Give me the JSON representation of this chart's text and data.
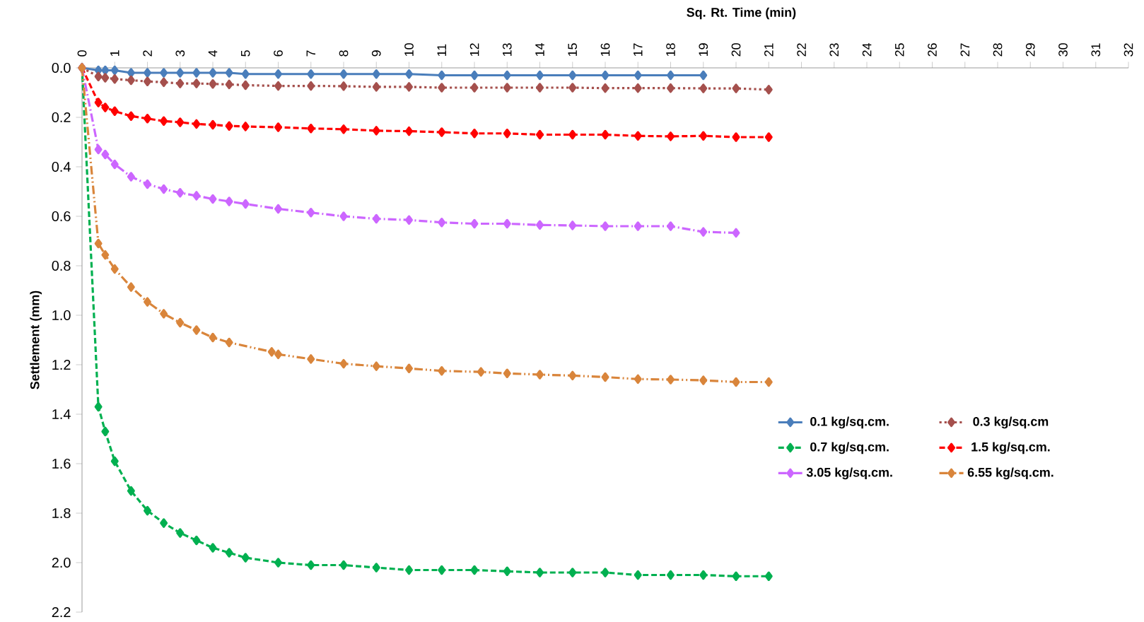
{
  "chart_data": {
    "type": "line",
    "xlabel": "Sq. Rt. Time (min)",
    "ylabel": "Settlement (mm)",
    "xlim": [
      0,
      32
    ],
    "xticks": [
      0,
      1,
      2,
      3,
      4,
      5,
      6,
      7,
      8,
      9,
      10,
      11,
      12,
      13,
      14,
      15,
      16,
      17,
      18,
      19,
      20,
      21,
      22,
      23,
      24,
      25,
      26,
      27,
      28,
      29,
      30,
      31,
      32
    ],
    "ylim": [
      2.2,
      0
    ],
    "yticks": [
      {
        "value": 0,
        "label": "0.0"
      },
      {
        "value": 0.2,
        "label": "0.2"
      },
      {
        "value": 0.4,
        "label": "0.4"
      },
      {
        "value": 0.6,
        "label": "0.6"
      },
      {
        "value": 0.8,
        "label": "0.8"
      },
      {
        "value": 1.0,
        "label": "1.0"
      },
      {
        "value": 1.2,
        "label": "1.2"
      },
      {
        "value": 1.4,
        "label": "1.4"
      },
      {
        "value": 1.6,
        "label": "1.6"
      },
      {
        "value": 1.8,
        "label": "1.8"
      },
      {
        "value": 2.0,
        "label": "2.0"
      },
      {
        "value": 2.2,
        "label": "2.2"
      }
    ],
    "legend": "right",
    "marker": "diamond",
    "series": [
      {
        "name": "0.1 kg/sq.cm.",
        "color": "#4a7ebb",
        "line_style": "solid",
        "x": [
          0,
          0.5,
          0.71,
          1,
          1.5,
          2,
          2.5,
          3,
          3.5,
          4,
          4.5,
          5,
          6,
          7,
          8,
          9,
          10,
          11,
          12,
          13,
          14,
          15,
          16,
          17,
          18,
          19
        ],
        "values": [
          0,
          0.01,
          0.01,
          0.01,
          0.02,
          0.02,
          0.02,
          0.02,
          0.02,
          0.02,
          0.02,
          0.025,
          0.025,
          0.025,
          0.025,
          0.025,
          0.025,
          0.03,
          0.03,
          0.03,
          0.03,
          0.03,
          0.03,
          0.03,
          0.03,
          0.03
        ]
      },
      {
        "name": "0.3 kg/sq.cm",
        "color": "#a5504d",
        "line_style": "dotted",
        "x": [
          0,
          0.5,
          0.71,
          1,
          1.5,
          2,
          2.5,
          3,
          3.5,
          4,
          4.5,
          5,
          6,
          7,
          8,
          9,
          10,
          11,
          12,
          13,
          14,
          15,
          16,
          17,
          18,
          19,
          20,
          21
        ],
        "values": [
          0,
          0.035,
          0.04,
          0.045,
          0.05,
          0.055,
          0.058,
          0.063,
          0.063,
          0.065,
          0.067,
          0.07,
          0.073,
          0.073,
          0.074,
          0.077,
          0.077,
          0.08,
          0.08,
          0.08,
          0.08,
          0.08,
          0.082,
          0.082,
          0.082,
          0.083,
          0.083,
          0.088
        ]
      },
      {
        "name": "0.7 kg/sq.cm.",
        "color": "#00b050",
        "line_style": "dashed",
        "x": [
          0,
          0.5,
          0.71,
          1,
          1.5,
          2,
          2.5,
          3,
          3.5,
          4,
          4.5,
          5,
          6,
          7,
          8,
          9,
          10,
          11,
          12,
          13,
          14,
          15,
          16,
          17,
          18,
          19,
          20,
          21
        ],
        "values": [
          0,
          1.37,
          1.47,
          1.59,
          1.71,
          1.79,
          1.84,
          1.88,
          1.91,
          1.94,
          1.96,
          1.98,
          2.0,
          2.01,
          2.01,
          2.02,
          2.03,
          2.03,
          2.03,
          2.035,
          2.04,
          2.04,
          2.04,
          2.05,
          2.05,
          2.05,
          2.055,
          2.055
        ]
      },
      {
        "name": "1.5 kg/sq.cm.",
        "color": "#ff0000",
        "line_style": "dashed",
        "x": [
          0,
          0.5,
          0.71,
          1,
          1.5,
          2,
          2.5,
          3,
          3.5,
          4,
          4.5,
          5,
          6,
          7,
          8,
          9,
          10,
          11,
          12,
          13,
          14,
          15,
          16,
          17,
          18,
          19,
          20,
          21
        ],
        "values": [
          0,
          0.14,
          0.16,
          0.175,
          0.195,
          0.205,
          0.215,
          0.22,
          0.227,
          0.23,
          0.235,
          0.237,
          0.24,
          0.245,
          0.248,
          0.254,
          0.256,
          0.26,
          0.265,
          0.265,
          0.27,
          0.27,
          0.27,
          0.275,
          0.277,
          0.275,
          0.28,
          0.28
        ]
      },
      {
        "name": "3.05 kg/sq.cm.",
        "color": "#cc66ff",
        "line_style": "dashdot",
        "x": [
          0,
          0.5,
          0.71,
          1,
          1.5,
          2,
          2.5,
          3,
          3.5,
          4,
          4.5,
          5,
          6,
          7,
          8,
          9,
          10,
          11,
          12,
          13,
          14,
          15,
          16,
          17,
          18,
          19,
          20
        ],
        "values": [
          0,
          0.33,
          0.35,
          0.39,
          0.44,
          0.47,
          0.49,
          0.505,
          0.517,
          0.53,
          0.54,
          0.55,
          0.57,
          0.585,
          0.6,
          0.61,
          0.615,
          0.625,
          0.63,
          0.63,
          0.635,
          0.637,
          0.64,
          0.64,
          0.64,
          0.663,
          0.667
        ]
      },
      {
        "name": "6.55 kg/sq.cm.",
        "color": "#d9853b",
        "line_style": "dashdotdot",
        "x": [
          0,
          0.5,
          0.71,
          1,
          1.5,
          2,
          2.5,
          3,
          3.5,
          4,
          4.5,
          5.8,
          6,
          7,
          8,
          9,
          10,
          11,
          12.2,
          13,
          14,
          15,
          16,
          17,
          18,
          19,
          20,
          21
        ],
        "values": [
          0,
          0.71,
          0.756,
          0.813,
          0.886,
          0.946,
          0.994,
          1.03,
          1.06,
          1.09,
          1.11,
          1.148,
          1.158,
          1.177,
          1.196,
          1.206,
          1.215,
          1.225,
          1.229,
          1.235,
          1.24,
          1.244,
          1.25,
          1.258,
          1.26,
          1.263,
          1.27,
          1.27
        ]
      }
    ]
  }
}
